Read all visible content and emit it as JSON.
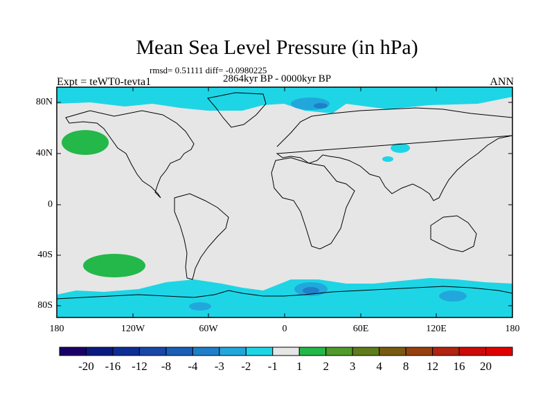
{
  "title": "Mean Sea Level Pressure (in hPa)",
  "stats": "rmsd= 0.51111 diff= -0.0980225",
  "period": "2864kyr BP - 0000kyr BP",
  "expt": "Expt = teWT0-tevta1",
  "season": "ANN",
  "lat_labels": [
    "80N",
    "40N",
    "0",
    "40S",
    "80S"
  ],
  "lon_labels": [
    "180",
    "120W",
    "60W",
    "0",
    "60E",
    "120E",
    "180"
  ],
  "colorbar": {
    "labels": [
      "-20",
      "-16",
      "-12",
      "-8",
      "-4",
      "-3",
      "-2",
      "-1",
      "1",
      "2",
      "3",
      "4",
      "8",
      "12",
      "16",
      "20"
    ],
    "colors": [
      "#1a0066",
      "#0b1a80",
      "#0e2e96",
      "#1747a8",
      "#1a5eb8",
      "#1f7fc8",
      "#22a7dc",
      "#1ed5e6",
      "#e6e6e6",
      "#23b849",
      "#4f9a2a",
      "#5e7c1a",
      "#7a5a10",
      "#964010",
      "#b02410",
      "#cc0a0a",
      "#e00000"
    ]
  },
  "colors": {
    "background": "#e6e6e6",
    "neg1": "#1ed5e6",
    "neg2": "#22a7dc",
    "neg3": "#1f7fc8",
    "pos1": "#23b849"
  }
}
